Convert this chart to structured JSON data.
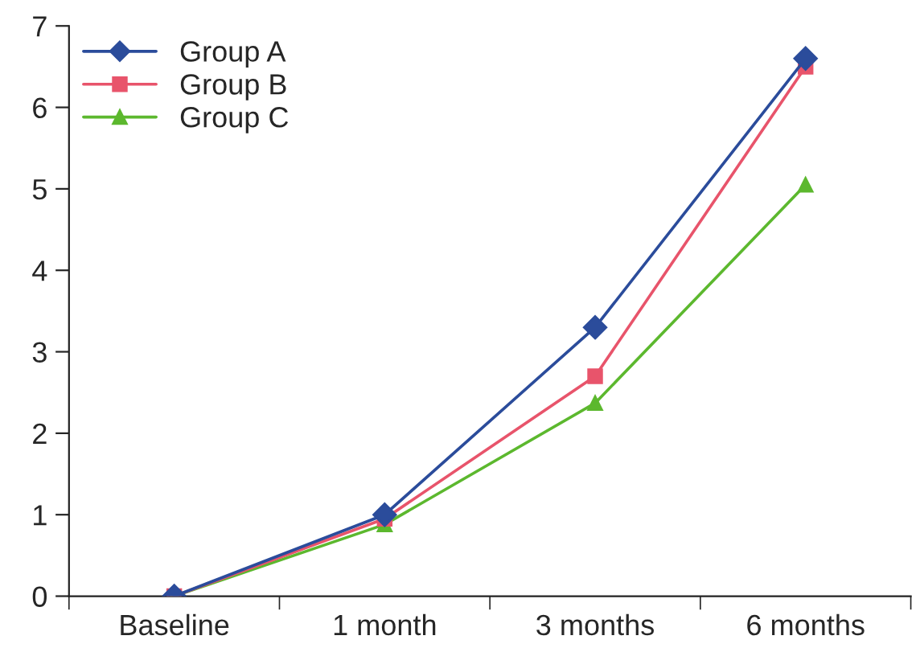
{
  "chart_data": {
    "type": "line",
    "categories": [
      "Baseline",
      "1 month",
      "3 months",
      "6 months"
    ],
    "series": [
      {
        "name": "Group A",
        "color": "#2b4c9b",
        "marker": "diamond",
        "values": [
          0,
          1.0,
          3.3,
          6.6
        ]
      },
      {
        "name": "Group B",
        "color": "#e8546b",
        "marker": "square",
        "values": [
          0,
          0.95,
          2.7,
          6.5
        ]
      },
      {
        "name": "Group C",
        "color": "#5cb82e",
        "marker": "triangle",
        "values": [
          0,
          0.88,
          2.37,
          5.05
        ]
      }
    ],
    "ylim": [
      0,
      7
    ],
    "yticks": [
      0,
      1,
      2,
      3,
      4,
      5,
      6,
      7
    ],
    "grid": false,
    "legend": "top left",
    "line_style": "solid"
  }
}
